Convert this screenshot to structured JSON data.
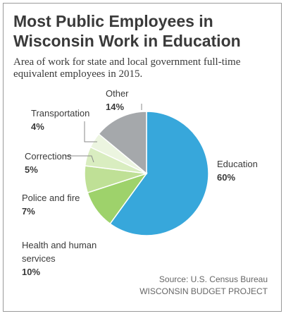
{
  "title": "Most Public Employees in Wisconsin Work in Education",
  "subtitle": "Area of work for state and local government full-time equivalent employees in 2015.",
  "source": "Source: U.S. Census Bureau",
  "credit": "WISCONSIN BUDGET PROJECT",
  "chart_data": {
    "type": "pie",
    "title": "Most Public Employees in Wisconsin Work in Education",
    "unit": "%",
    "slices": [
      {
        "name": "Education",
        "label_lines": [
          "Education"
        ],
        "value": 60,
        "value_label": "60%",
        "color": "#37a7db"
      },
      {
        "name": "Health and human services",
        "label_lines": [
          "Health and human",
          "services"
        ],
        "value": 10,
        "value_label": "10%",
        "color": "#9ed26b"
      },
      {
        "name": "Police and fire",
        "label_lines": [
          "Police and fire"
        ],
        "value": 7,
        "value_label": "7%",
        "color": "#bfe096"
      },
      {
        "name": "Corrections",
        "label_lines": [
          "Corrections"
        ],
        "value": 5,
        "value_label": "5%",
        "color": "#d9edc0"
      },
      {
        "name": "Transportation",
        "label_lines": [
          "Transportation"
        ],
        "value": 4,
        "value_label": "4%",
        "color": "#ecf5e0"
      },
      {
        "name": "Other",
        "label_lines": [
          "Other"
        ],
        "value": 14,
        "value_label": "14%",
        "color": "#a5a8ab"
      }
    ]
  }
}
